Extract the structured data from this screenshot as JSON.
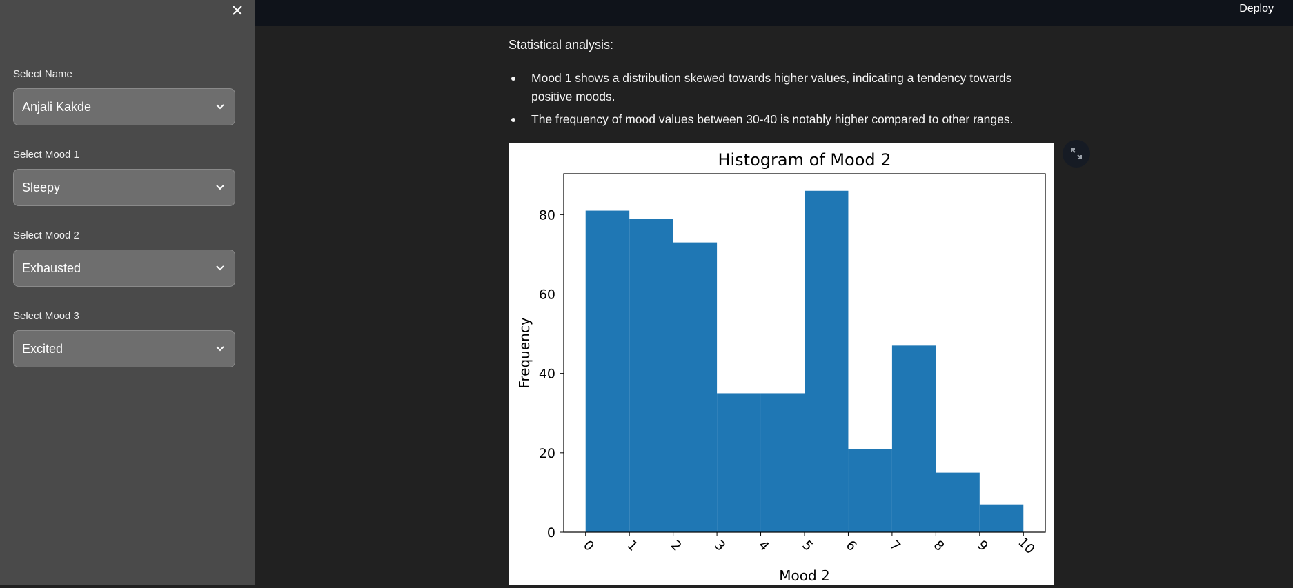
{
  "sidebar": {
    "fields": [
      {
        "label": "Select Name",
        "value": "Anjali Kakde"
      },
      {
        "label": "Select Mood 1",
        "value": "Sleepy"
      },
      {
        "label": "Select Mood 2",
        "value": "Exhausted"
      },
      {
        "label": "Select Mood 3",
        "value": "Excited"
      }
    ],
    "close_icon": "close-icon",
    "chevron_icon": "chevron-down-icon"
  },
  "header": {
    "deploy_label": "Deploy"
  },
  "main": {
    "heading": "Statistical analysis:",
    "bullets": [
      "Mood 1 shows a distribution skewed towards higher values, indicating a tendency towards positive moods.",
      "The frequency of mood values between 30-40 is notably higher compared to other ranges."
    ],
    "expand_icon": "expand-icon"
  },
  "colors": {
    "bar": "#1f77b4",
    "sidebar_bg": "#4a4a4a",
    "main_bg": "#212121",
    "topbar_bg": "#0f131a"
  },
  "chart_data": {
    "type": "bar",
    "title": "Histogram of Mood 2",
    "xlabel": "Mood 2",
    "ylabel": "Frequency",
    "bin_edges": [
      0,
      1,
      2,
      3,
      4,
      5,
      6,
      7,
      8,
      9,
      10
    ],
    "values": [
      81,
      79,
      73,
      35,
      35,
      86,
      21,
      47,
      15,
      7
    ],
    "xticks": [
      "0",
      "1",
      "2",
      "3",
      "4",
      "5",
      "6",
      "7",
      "8",
      "9",
      "10"
    ],
    "yticks": [
      "0",
      "20",
      "40",
      "60",
      "80"
    ],
    "xlim": [
      -0.5,
      10.5
    ],
    "ylim": [
      0,
      90.3
    ],
    "grid": false
  }
}
